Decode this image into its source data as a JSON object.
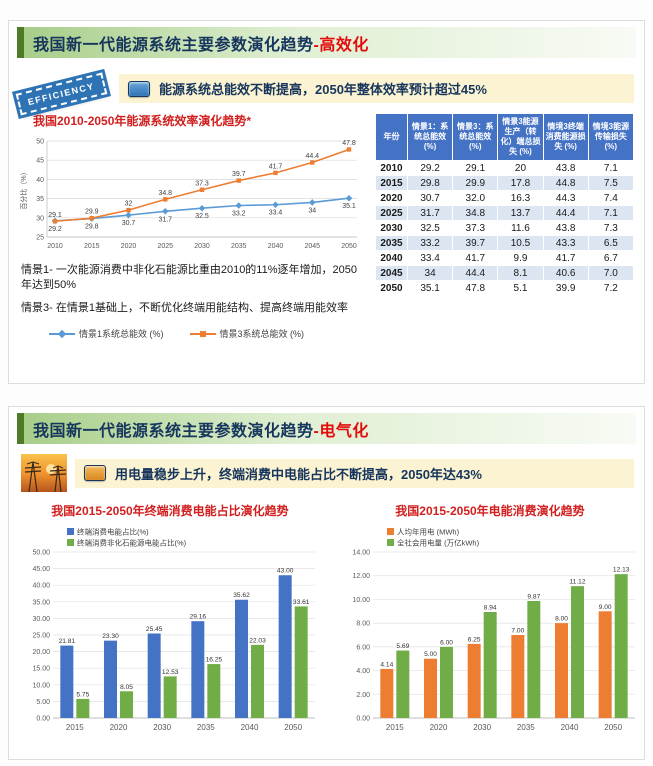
{
  "slide1": {
    "title_main": "我国新一代能源系统主要参数演化趋势",
    "title_suffix": "-高效化",
    "stamp": "EFFICIENCY",
    "banner": "能源系统总能效不断提高，2050年整体效率预计超过45%",
    "notes": [
      "情景1- 一次能源消费中非化石能源比重由2010的11%逐年增加，2050年达到50%",
      "情景3- 在情景1基础上，不断优化终端用能结构、提高终端用能效率"
    ]
  },
  "slide2": {
    "title_main": "我国新一代能源系统主要参数演化趋势",
    "title_suffix": "-电气化",
    "banner": "用电量稳步上升，终端消费中电能占比不断提高，2050年达43%"
  },
  "theme": {
    "banner_bg": "#FBF3D1",
    "title_navy": "#17365D",
    "title_red": "#E30B0B",
    "chart_title_red": "#D21F1F",
    "header_green_dark": "#4F7A28",
    "header_green_light": "#A6CD87",
    "table_header_blue": "#4472C4",
    "table_band_blue": "#DCE6F2",
    "stamp_blue": "#2E74B5"
  },
  "chart_data": [
    {
      "id": "efficiency-line",
      "type": "line",
      "title": "我国2010-2050年能源系统效率演化趋势*",
      "ylabel": "百分比（%）",
      "categories": [
        "2010",
        "2015",
        "2020",
        "2025",
        "2030",
        "2035",
        "2040",
        "2045",
        "2050"
      ],
      "series": [
        {
          "name": "情景1系统总能效 (%)",
          "color": "#5B9BD5",
          "marker": "diamond",
          "label_pos": "below",
          "values": [
            29.2,
            29.8,
            30.7,
            31.7,
            32.5,
            33.2,
            33.4,
            34,
            35.1
          ]
        },
        {
          "name": "情景3系统总能效 (%)",
          "color": "#ED7D31",
          "marker": "square",
          "label_pos": "above",
          "values": [
            29.1,
            29.9,
            32,
            34.8,
            37.3,
            39.7,
            41.7,
            44.4,
            47.8
          ]
        }
      ],
      "ylim": [
        25,
        50
      ],
      "ystep": 5,
      "tick_decimals": 0,
      "grid": true,
      "legend_position": "bottom"
    },
    {
      "id": "efficiency-table",
      "type": "table",
      "columns": [
        "年份",
        "情景1：系统总能效 (%)",
        "情景3：系统总能效 (%)",
        "情景3能源生产（转化）端总损失 (%)",
        "情境3终端消费能源损失 (%)",
        "情境3能源传输损失 (%)"
      ],
      "rows": [
        [
          "2010",
          "29.2",
          "29.1",
          "20",
          "43.8",
          "7.1"
        ],
        [
          "2015",
          "29.8",
          "29.9",
          "17.8",
          "44.8",
          "7.5"
        ],
        [
          "2020",
          "30.7",
          "32.0",
          "16.3",
          "44.3",
          "7.4"
        ],
        [
          "2025",
          "31.7",
          "34.8",
          "13.7",
          "44.4",
          "7.1"
        ],
        [
          "2030",
          "32.5",
          "37.3",
          "11.6",
          "43.8",
          "7.3"
        ],
        [
          "2035",
          "33.2",
          "39.7",
          "10.5",
          "43.3",
          "6.5"
        ],
        [
          "2040",
          "33.4",
          "41.7",
          "9.9",
          "41.7",
          "6.7"
        ],
        [
          "2045",
          "34",
          "44.4",
          "8.1",
          "40.6",
          "7.0"
        ],
        [
          "2050",
          "35.1",
          "47.8",
          "5.1",
          "39.9",
          "7.2"
        ]
      ]
    },
    {
      "id": "electricity-share-bar",
      "type": "bar",
      "title": "我国2015-2050年终端消费电能占比演化趋势",
      "categories": [
        "2015",
        "2020",
        "2030",
        "2035",
        "2040",
        "2050"
      ],
      "series": [
        {
          "name": "终端消费电能占比(%)",
          "color": "#4472C4",
          "values": [
            21.81,
            23.3,
            25.45,
            29.16,
            35.62,
            43.0
          ]
        },
        {
          "name": "终端消费非化石能源电能占比(%)",
          "color": "#70AD47",
          "values": [
            5.75,
            8.05,
            12.53,
            16.25,
            22.03,
            33.61
          ]
        }
      ],
      "ylim": [
        0,
        50
      ],
      "ystep": 5,
      "tick_decimals": 2,
      "label_decimals": 2,
      "grid": true,
      "legend_position": "top-left"
    },
    {
      "id": "electricity-consumption-bar",
      "type": "bar",
      "title": "我国2015-2050年电能消费演化趋势",
      "categories": [
        "2015",
        "2020",
        "2030",
        "2035",
        "2040",
        "2050"
      ],
      "series": [
        {
          "name": "人均年用电 (MWh)",
          "color": "#ED7D31",
          "values": [
            4.14,
            5.0,
            6.25,
            7.0,
            8.0,
            9.0
          ]
        },
        {
          "name": "全社会用电量 (万亿kWh)",
          "color": "#70AD47",
          "values": [
            5.69,
            6.0,
            8.94,
            9.87,
            11.12,
            12.13
          ]
        }
      ],
      "ylim": [
        0,
        14
      ],
      "ystep": 2,
      "tick_decimals": 2,
      "label_decimals": 2,
      "grid": true,
      "legend_position": "top-left"
    }
  ]
}
